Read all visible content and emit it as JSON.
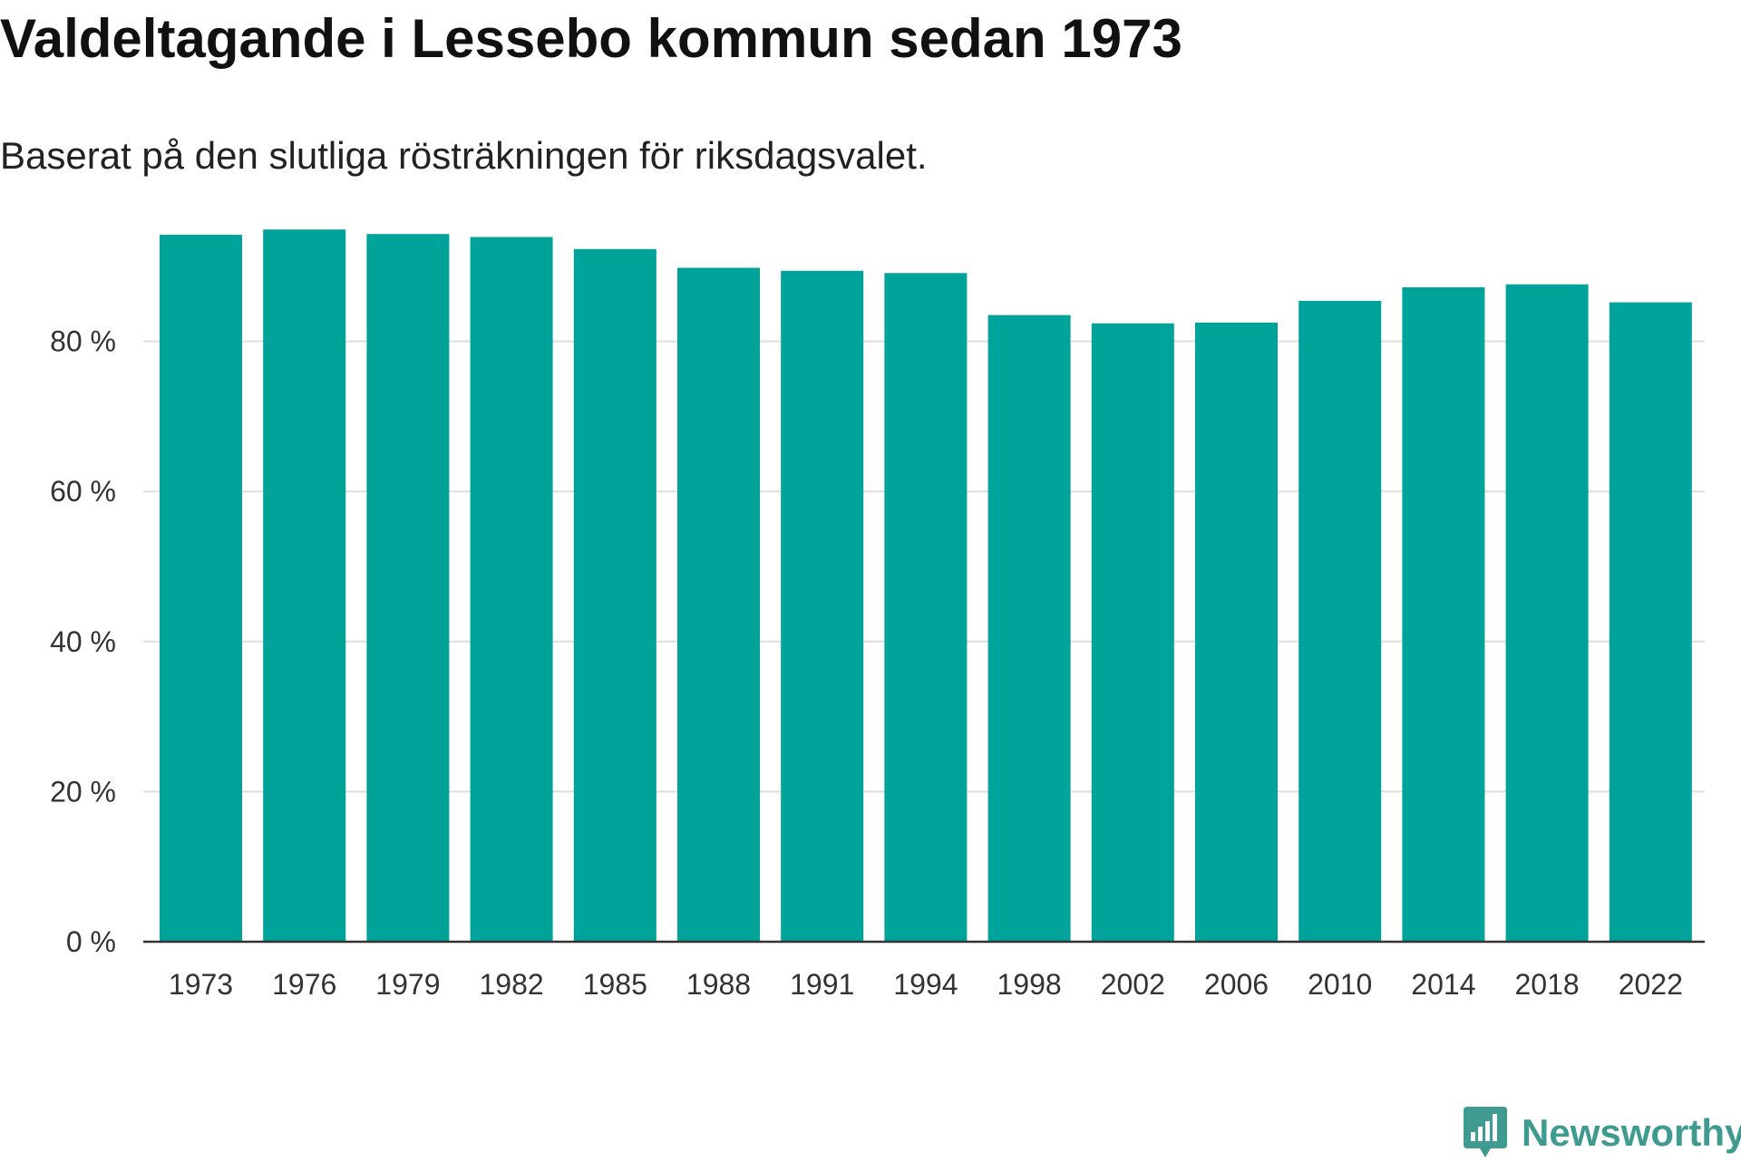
{
  "title": "Valdeltagande i Lessebo kommun sedan 1973",
  "subtitle": "Baserat på den slutliga rösträkningen för riksdagsvalet.",
  "brand": {
    "name": "Newsworthy",
    "icon": "newsworthy-logo-icon",
    "color": "#3f9a8f"
  },
  "colors": {
    "bar": "#00a39a",
    "grid": "#dddddd",
    "axis": "#333333"
  },
  "chart_data": {
    "type": "bar",
    "title": "Valdeltagande i Lessebo kommun sedan 1973",
    "subtitle": "Baserat på den slutliga rösträkningen för riksdagsvalet.",
    "xlabel": "",
    "ylabel": "",
    "categories": [
      "1973",
      "1976",
      "1979",
      "1982",
      "1985",
      "1988",
      "1991",
      "1994",
      "1998",
      "2002",
      "2006",
      "2010",
      "2014",
      "2018",
      "2022"
    ],
    "values": [
      94.2,
      94.9,
      94.3,
      93.9,
      92.3,
      89.8,
      89.4,
      89.1,
      83.5,
      82.4,
      82.5,
      85.4,
      87.2,
      87.6,
      85.2
    ],
    "ylim": [
      0,
      100
    ],
    "yticks": [
      0,
      20,
      40,
      60,
      80
    ],
    "ytick_labels": [
      "0 %",
      "20 %",
      "40 %",
      "60 %",
      "80 %"
    ],
    "grid": true,
    "legend": "none"
  }
}
